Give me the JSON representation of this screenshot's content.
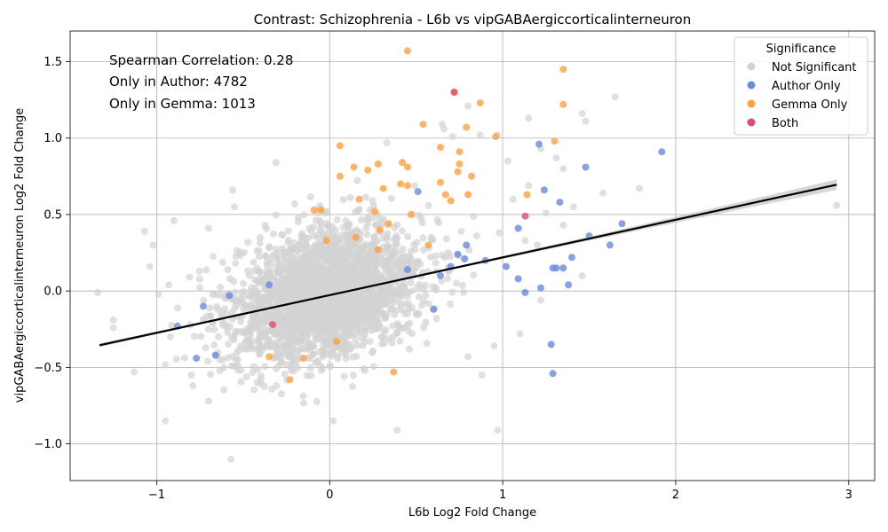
{
  "chart_data": {
    "type": "scatter",
    "title": "Contrast: Schizophrenia - L6b vs vipGABAergiccorticalinterneuron",
    "xlabel": "L6b Log2 Fold Change",
    "ylabel": "vipGABAergiccorticalinterneuron Log2 Fold Change",
    "xlim": [
      -1.5,
      3.15
    ],
    "ylim": [
      -1.24,
      1.7
    ],
    "xticks": [
      -1,
      0,
      1,
      2,
      3
    ],
    "xtick_labels": [
      "−1",
      "0",
      "1",
      "2",
      "3"
    ],
    "yticks": [
      -1.0,
      -0.5,
      0.0,
      0.5,
      1.0,
      1.5
    ],
    "ytick_labels": [
      "−1.0",
      "−0.5",
      "0.0",
      "0.5",
      "1.0",
      "1.5"
    ],
    "grid": true,
    "annotations": [
      "Spearman Correlation: 0.28",
      "Only in Author: 4782",
      "Only in Gemma: 1013"
    ],
    "legend": {
      "title": "Significance",
      "placement": "top-right",
      "entries": [
        "Not Significant",
        "Author Only",
        "Gemma Only",
        "Both"
      ]
    },
    "regression_line": {
      "x": [
        -1.33,
        2.93
      ],
      "y": [
        -0.355,
        0.695
      ]
    },
    "series": [
      {
        "name": "Not Significant",
        "color": "#d3d3d3",
        "cloud": {
          "n": 2600,
          "cx": -0.02,
          "cy": -0.02,
          "sx": 0.27,
          "sy": 0.21
        },
        "points": [
          [
            -1.34,
            -0.01
          ],
          [
            -1.25,
            -0.19
          ],
          [
            -1.25,
            -0.24
          ],
          [
            -1.13,
            -0.53
          ],
          [
            -1.07,
            0.39
          ],
          [
            -1.04,
            0.16
          ],
          [
            -1.02,
            0.3
          ],
          [
            -0.99,
            -0.02
          ],
          [
            -0.93,
            0.04
          ],
          [
            -0.92,
            -0.3
          ],
          [
            -0.9,
            0.46
          ],
          [
            -0.81,
            0.09
          ],
          [
            -0.8,
            -0.55
          ],
          [
            -0.79,
            -0.62
          ],
          [
            -0.7,
            -0.72
          ],
          [
            -0.7,
            0.41
          ],
          [
            -0.57,
            -1.1
          ],
          [
            -0.56,
            0.66
          ],
          [
            -0.55,
            0.55
          ],
          [
            -0.31,
            0.84
          ],
          [
            0.02,
            -0.85
          ],
          [
            0.39,
            -0.91
          ],
          [
            0.33,
            0.97
          ],
          [
            0.65,
            1.09
          ],
          [
            0.66,
            1.06
          ],
          [
            0.71,
            1.01
          ],
          [
            0.8,
            1.21
          ],
          [
            0.87,
            1.02
          ],
          [
            0.97,
            1.02
          ],
          [
            1.03,
            0.85
          ],
          [
            1.15,
            1.13
          ],
          [
            1.22,
            0.93
          ],
          [
            1.31,
            0.87
          ],
          [
            1.35,
            0.8
          ],
          [
            1.46,
            1.16
          ],
          [
            1.48,
            1.11
          ],
          [
            1.65,
            1.27
          ],
          [
            1.58,
            0.64
          ],
          [
            1.79,
            0.67
          ],
          [
            1.41,
            0.55
          ],
          [
            1.25,
            0.51
          ],
          [
            1.35,
            0.43
          ],
          [
            1.46,
            0.1
          ],
          [
            1.22,
            -0.06
          ],
          [
            1.1,
            -0.28
          ],
          [
            0.97,
            -0.91
          ],
          [
            0.88,
            -0.55
          ],
          [
            0.8,
            -0.43
          ],
          [
            0.95,
            -0.36
          ],
          [
            2.93,
            0.56
          ],
          [
            1.15,
            0.69
          ],
          [
            1.13,
            0.33
          ],
          [
            1.2,
            0.3
          ],
          [
            1.06,
            0.6
          ],
          [
            0.98,
            0.38
          ]
        ]
      },
      {
        "name": "Author Only",
        "color": "#6a8ae0",
        "points": [
          [
            1.92,
            0.91
          ],
          [
            1.48,
            0.81
          ],
          [
            1.21,
            0.96
          ],
          [
            1.24,
            0.66
          ],
          [
            1.33,
            0.58
          ],
          [
            1.69,
            0.44
          ],
          [
            1.09,
            0.41
          ],
          [
            1.5,
            0.36
          ],
          [
            1.62,
            0.3
          ],
          [
            1.4,
            0.22
          ],
          [
            1.02,
            0.16
          ],
          [
            1.29,
            0.15
          ],
          [
            1.31,
            0.15
          ],
          [
            1.35,
            0.15
          ],
          [
            1.09,
            0.08
          ],
          [
            1.38,
            0.04
          ],
          [
            1.22,
            0.02
          ],
          [
            1.13,
            -0.01
          ],
          [
            1.28,
            -0.35
          ],
          [
            1.29,
            -0.54
          ],
          [
            0.51,
            0.65
          ],
          [
            0.9,
            0.2
          ],
          [
            0.78,
            0.21
          ],
          [
            0.74,
            0.24
          ],
          [
            0.7,
            0.16
          ],
          [
            0.64,
            0.1
          ],
          [
            0.6,
            -0.12
          ],
          [
            0.45,
            0.14
          ],
          [
            -0.77,
            -0.44
          ],
          [
            -0.66,
            -0.42
          ],
          [
            -0.73,
            -0.1
          ],
          [
            -0.88,
            -0.23
          ],
          [
            -0.58,
            -0.03
          ],
          [
            -0.35,
            0.04
          ],
          [
            0.79,
            0.3
          ]
        ]
      },
      {
        "name": "Gemma Only",
        "color": "#ffa040",
        "points": [
          [
            0.45,
            1.57
          ],
          [
            1.35,
            1.45
          ],
          [
            0.72,
            1.3
          ],
          [
            0.87,
            1.23
          ],
          [
            1.35,
            1.22
          ],
          [
            0.54,
            1.09
          ],
          [
            0.79,
            1.07
          ],
          [
            0.96,
            1.01
          ],
          [
            1.3,
            0.98
          ],
          [
            0.06,
            0.95
          ],
          [
            0.64,
            0.94
          ],
          [
            0.75,
            0.91
          ],
          [
            0.42,
            0.84
          ],
          [
            0.45,
            0.81
          ],
          [
            0.14,
            0.81
          ],
          [
            0.28,
            0.83
          ],
          [
            0.22,
            0.79
          ],
          [
            0.74,
            0.78
          ],
          [
            0.06,
            0.75
          ],
          [
            0.82,
            0.75
          ],
          [
            0.75,
            0.83
          ],
          [
            0.64,
            0.71
          ],
          [
            0.41,
            0.7
          ],
          [
            0.45,
            0.69
          ],
          [
            0.31,
            0.67
          ],
          [
            1.14,
            0.63
          ],
          [
            0.67,
            0.63
          ],
          [
            0.8,
            0.63
          ],
          [
            0.7,
            0.59
          ],
          [
            0.17,
            0.6
          ],
          [
            0.26,
            0.52
          ],
          [
            -0.05,
            0.53
          ],
          [
            -0.09,
            0.53
          ],
          [
            0.47,
            0.5
          ],
          [
            0.29,
            0.4
          ],
          [
            0.34,
            0.44
          ],
          [
            -0.02,
            0.33
          ],
          [
            0.15,
            0.35
          ],
          [
            0.28,
            0.27
          ],
          [
            0.04,
            -0.33
          ],
          [
            -0.35,
            -0.43
          ],
          [
            -0.23,
            -0.58
          ],
          [
            0.37,
            -0.53
          ],
          [
            -0.15,
            -0.44
          ],
          [
            0.57,
            0.3
          ]
        ]
      },
      {
        "name": "Both",
        "color": "#d9506a",
        "points": [
          [
            0.72,
            1.3
          ],
          [
            1.13,
            0.49
          ],
          [
            -0.33,
            -0.22
          ]
        ]
      }
    ]
  }
}
